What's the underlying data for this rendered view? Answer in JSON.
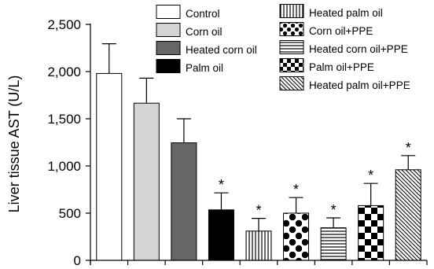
{
  "chart_data": {
    "type": "bar",
    "ylabel": "Liver tissue AST (U/L)",
    "ylim": [
      0,
      2500
    ],
    "yticks": [
      "0",
      "500",
      "1,000",
      "1,500",
      "2,000",
      "2,500"
    ],
    "ytick_values": [
      0,
      500,
      1000,
      1500,
      2000,
      2500
    ],
    "grid": false,
    "legend_position": "top-right",
    "categories": [
      "Control",
      "Corn oil",
      "Heated corn oil",
      "Palm oil",
      "Heated palm oil",
      "Corn oil+PPE",
      "Heated corn oil+PPE",
      "Palm oil+PPE",
      "Heated palm oil+PPE"
    ],
    "values": [
      1980,
      1665,
      1245,
      535,
      310,
      500,
      345,
      580,
      960
    ],
    "error": [
      315,
      265,
      255,
      180,
      135,
      165,
      105,
      235,
      150
    ],
    "significance": [
      "",
      "",
      "",
      "*",
      "*",
      "*",
      "*",
      "*",
      "*"
    ],
    "fills": [
      "white",
      "lightgray",
      "darkgray",
      "black",
      "vertical",
      "dots",
      "horizontal",
      "checker",
      "diagonal"
    ],
    "colors": {
      "lightgray": "#d4d4d4",
      "darkgray": "#666666",
      "black": "#000000",
      "white": "#ffffff"
    }
  }
}
